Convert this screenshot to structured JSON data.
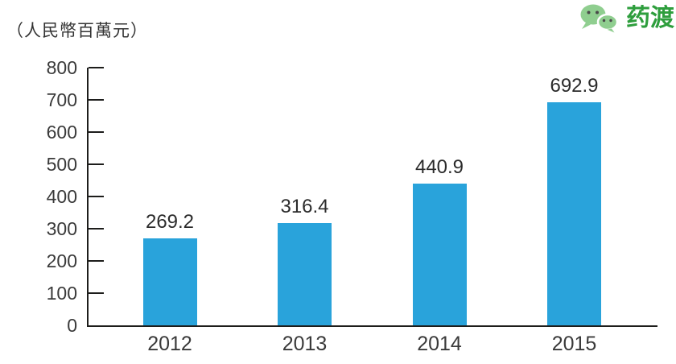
{
  "brand": {
    "name": "药渡",
    "color": "#2e9e3d",
    "icon": "wechat-chat-bubbles"
  },
  "chart_data": {
    "type": "bar",
    "title": "",
    "unit_label": "（人民幣百萬元）",
    "categories": [
      "2012",
      "2013",
      "2014",
      "2015"
    ],
    "values": [
      269.2,
      316.4,
      440.9,
      692.9
    ],
    "value_labels": [
      "269.2",
      "316.4",
      "440.9",
      "692.9"
    ],
    "xlabel": "",
    "ylabel": "",
    "ylim": [
      0,
      800
    ],
    "yticks": [
      0,
      100,
      200,
      300,
      400,
      500,
      600,
      700,
      800
    ],
    "grid": false,
    "legend": "none",
    "bar_color": "#29a3db",
    "axis_color": "#1d1d1b",
    "text_color": "#3a3a3a",
    "value_color": "#2b2b2b"
  }
}
